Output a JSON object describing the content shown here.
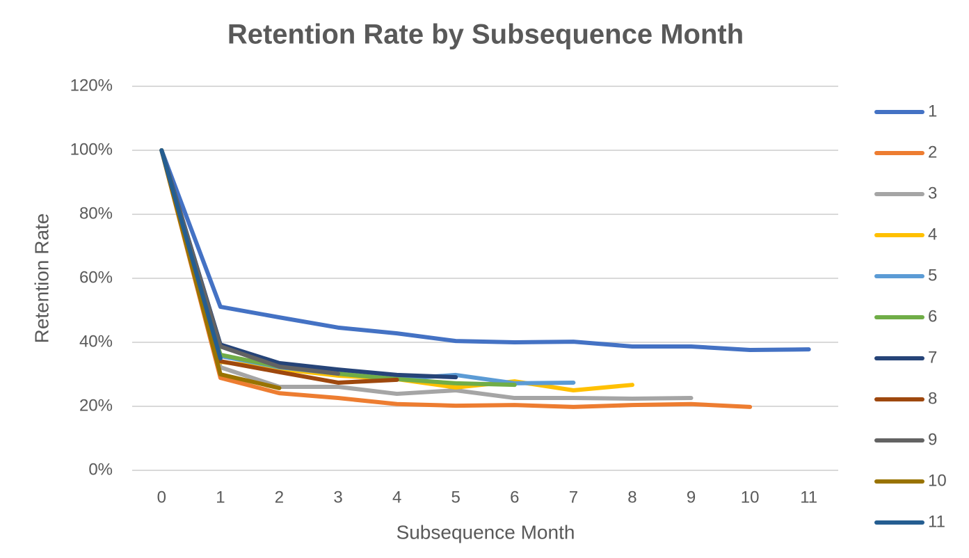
{
  "chart_data": {
    "type": "line",
    "title": "Retention Rate by Subsequence Month",
    "x_label": "Subsequence Month",
    "y_label": "Retention Rate",
    "categories": [
      "0",
      "1",
      "2",
      "3",
      "4",
      "5",
      "6",
      "7",
      "8",
      "9",
      "10",
      "11"
    ],
    "ylim": [
      0,
      120
    ],
    "yticks": [
      {
        "value": 0,
        "label": "0%"
      },
      {
        "value": 20,
        "label": "20%"
      },
      {
        "value": 40,
        "label": "40%"
      },
      {
        "value": 60,
        "label": "60%"
      },
      {
        "value": 80,
        "label": "80%"
      },
      {
        "value": 100,
        "label": "100%"
      },
      {
        "value": 120,
        "label": "120%"
      }
    ],
    "grid": true,
    "legend": "right",
    "series": [
      {
        "name": "1",
        "color": "#4472c4",
        "values": [
          100,
          51.1,
          47.8,
          44.6,
          42.8,
          40.4,
          40,
          40.2,
          38.7,
          38.7,
          37.6,
          37.8
        ]
      },
      {
        "name": "2",
        "color": "#ed7d31",
        "values": [
          100,
          28.9,
          24.1,
          22.6,
          20.7,
          20.2,
          20.4,
          19.8,
          20.4,
          20.7,
          19.8,
          null
        ]
      },
      {
        "name": "3",
        "color": "#a5a5a5",
        "values": [
          100,
          32.2,
          26.1,
          26.1,
          23.9,
          25,
          22.6,
          22.6,
          22.4,
          22.6,
          null,
          null
        ]
      },
      {
        "name": "4",
        "color": "#ffc000",
        "values": [
          100,
          33.9,
          31.7,
          29.6,
          28.5,
          25.9,
          27.8,
          25,
          26.7,
          null,
          null,
          null
        ]
      },
      {
        "name": "5",
        "color": "#5b9bd5",
        "values": [
          100,
          35.7,
          32.2,
          30.2,
          28.5,
          29.8,
          27.2,
          27.4,
          null,
          null,
          null,
          null
        ]
      },
      {
        "name": "6",
        "color": "#70ad47",
        "values": [
          100,
          36.1,
          32.4,
          30.2,
          28.5,
          27.2,
          26.7,
          null,
          null,
          null,
          null,
          null
        ]
      },
      {
        "name": "7",
        "color": "#264478",
        "values": [
          100,
          39.3,
          33.5,
          31.5,
          29.8,
          29.1,
          null,
          null,
          null,
          null,
          null,
          null
        ]
      },
      {
        "name": "8",
        "color": "#9e480e",
        "values": [
          100,
          34.1,
          30.7,
          27.4,
          28.3,
          null,
          null,
          null,
          null,
          null,
          null,
          null
        ]
      },
      {
        "name": "9",
        "color": "#636363",
        "values": [
          100,
          38.7,
          32.4,
          30.2,
          null,
          null,
          null,
          null,
          null,
          null,
          null,
          null
        ]
      },
      {
        "name": "10",
        "color": "#997300",
        "values": [
          100,
          30,
          25.7,
          null,
          null,
          null,
          null,
          null,
          null,
          null,
          null,
          null
        ]
      },
      {
        "name": "11",
        "color": "#255e91",
        "values": [
          100,
          35,
          null,
          null,
          null,
          null,
          null,
          null,
          null,
          null,
          null,
          null
        ]
      }
    ]
  }
}
